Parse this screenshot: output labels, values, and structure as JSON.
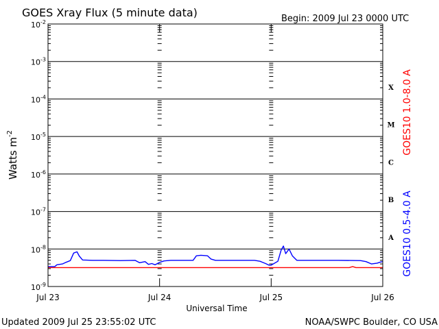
{
  "chart_data": {
    "type": "line",
    "title": "GOES Xray Flux (5 minute data)",
    "begin_label": "Begin:  2009 Jul 23 0000 UTC",
    "xlabel": "Universal Time",
    "ylabel": "Watts m",
    "ylabel_exp": "-2",
    "y_scale": "log",
    "ylim": [
      1e-09,
      0.01
    ],
    "y_ticks": [
      {
        "base": "10",
        "exp": "-2",
        "value": 0.01
      },
      {
        "base": "10",
        "exp": "-3",
        "value": 0.001
      },
      {
        "base": "10",
        "exp": "-4",
        "value": 0.0001
      },
      {
        "base": "10",
        "exp": "-5",
        "value": 1e-05
      },
      {
        "base": "10",
        "exp": "-6",
        "value": 1e-06
      },
      {
        "base": "10",
        "exp": "-7",
        "value": 1e-07
      },
      {
        "base": "10",
        "exp": "-8",
        "value": 1e-08
      },
      {
        "base": "10",
        "exp": "-9",
        "value": 1e-09
      }
    ],
    "x_range_days": [
      0,
      3
    ],
    "x_ticks": [
      {
        "label": "Jul 23",
        "day": 0
      },
      {
        "label": "Jul 24",
        "day": 1
      },
      {
        "label": "Jul 25",
        "day": 2
      },
      {
        "label": "Jul 26",
        "day": 3
      }
    ],
    "flare_classes": [
      {
        "label": "X",
        "value": 0.0002
      },
      {
        "label": "M",
        "value": 2e-05
      },
      {
        "label": "C",
        "value": 2e-06
      },
      {
        "label": "B",
        "value": 2e-07
      },
      {
        "label": "A",
        "value": 2e-08
      }
    ],
    "grid": true,
    "series": [
      {
        "name": "GOES10 1.0-8.0 A",
        "color": "#ff0000",
        "points": [
          [
            0.0,
            3.2e-09
          ],
          [
            0.05,
            3.2e-09
          ],
          [
            1.0,
            3.2e-09
          ],
          [
            2.0,
            3.2e-09
          ],
          [
            2.7,
            3.2e-09
          ],
          [
            2.73,
            3.4e-09
          ],
          [
            2.76,
            3.2e-09
          ],
          [
            3.0,
            3.2e-09
          ]
        ]
      },
      {
        "name": "GOES10 0.5-4.0 A",
        "color": "#0000ff",
        "points": [
          [
            0.0,
            3.4e-09
          ],
          [
            0.06,
            3.4e-09
          ],
          [
            0.08,
            3.8e-09
          ],
          [
            0.13,
            4e-09
          ],
          [
            0.16,
            4.4e-09
          ],
          [
            0.2,
            4.9e-09
          ],
          [
            0.23,
            7.8e-09
          ],
          [
            0.26,
            8.4e-09
          ],
          [
            0.28,
            6.5e-09
          ],
          [
            0.31,
            5.1e-09
          ],
          [
            0.4,
            5e-09
          ],
          [
            0.5,
            5e-09
          ],
          [
            0.65,
            4.9e-09
          ],
          [
            0.78,
            5e-09
          ],
          [
            0.82,
            4.3e-09
          ],
          [
            0.87,
            4.6e-09
          ],
          [
            0.9,
            3.9e-09
          ],
          [
            0.93,
            4.1e-09
          ],
          [
            0.96,
            3.8e-09
          ],
          [
            1.0,
            4.4e-09
          ],
          [
            1.04,
            4.8e-09
          ],
          [
            1.1,
            5e-09
          ],
          [
            1.2,
            5e-09
          ],
          [
            1.3,
            5e-09
          ],
          [
            1.33,
            6.6e-09
          ],
          [
            1.37,
            6.8e-09
          ],
          [
            1.43,
            6.6e-09
          ],
          [
            1.46,
            5.4e-09
          ],
          [
            1.5,
            5e-09
          ],
          [
            1.7,
            5e-09
          ],
          [
            1.85,
            5e-09
          ],
          [
            1.9,
            4.7e-09
          ],
          [
            1.95,
            4.1e-09
          ],
          [
            1.98,
            3.7e-09
          ],
          [
            2.0,
            3.7e-09
          ],
          [
            2.06,
            4.7e-09
          ],
          [
            2.09,
            9.5e-09
          ],
          [
            2.11,
            1.2e-08
          ],
          [
            2.13,
            7.5e-09
          ],
          [
            2.16,
            1e-08
          ],
          [
            2.19,
            6.6e-09
          ],
          [
            2.23,
            5e-09
          ],
          [
            2.3,
            5e-09
          ],
          [
            2.6,
            5e-09
          ],
          [
            2.8,
            4.9e-09
          ],
          [
            2.85,
            4.6e-09
          ],
          [
            2.9,
            4e-09
          ],
          [
            2.95,
            4.2e-09
          ],
          [
            2.98,
            4.5e-09
          ],
          [
            3.0,
            4.6e-09
          ]
        ]
      }
    ]
  },
  "footer": {
    "updated": "Updated 2009 Jul 25 23:55:02 UTC",
    "credit": "NOAA/SWPC Boulder, CO USA"
  }
}
